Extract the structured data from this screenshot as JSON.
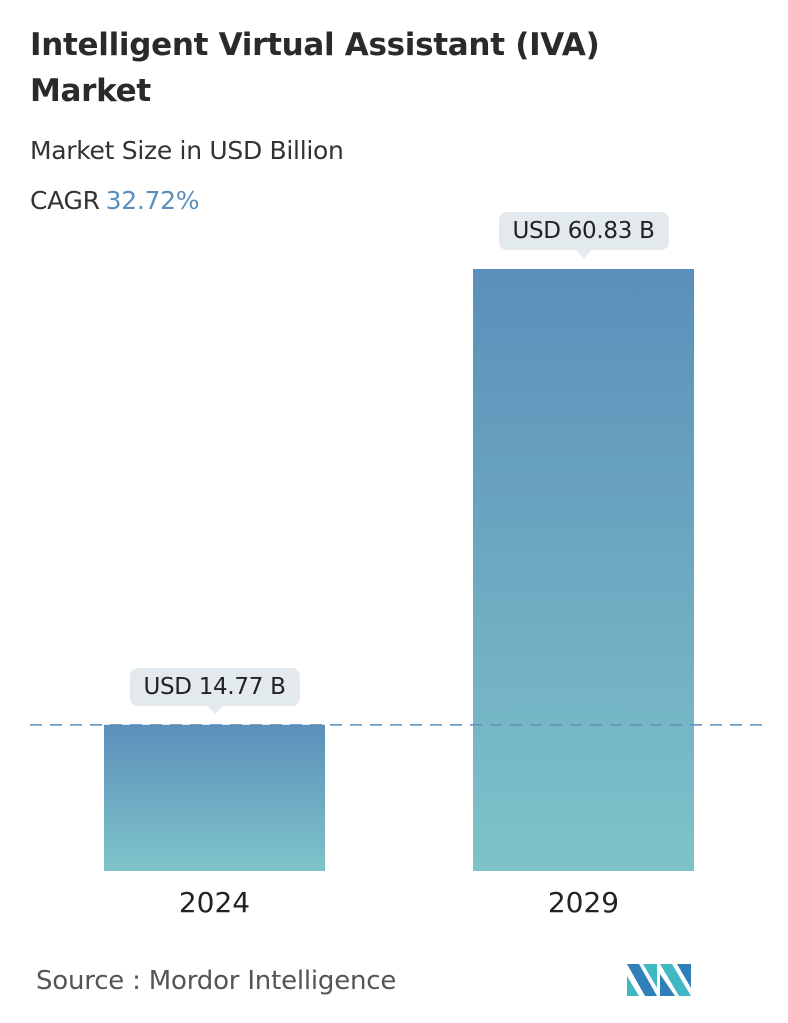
{
  "header": {
    "title": "Intelligent Virtual Assistant (IVA) Market",
    "subtitle": "Market Size in USD Billion",
    "cagr_label": "CAGR",
    "cagr_value": "32.72%"
  },
  "chart_data": {
    "type": "bar",
    "title": "Intelligent Virtual Assistant (IVA) Market",
    "ylabel": "Market Size in USD Billion",
    "categories": [
      "2024",
      "2029"
    ],
    "values": [
      14.77,
      60.83
    ],
    "data_labels": [
      "USD 14.77 B",
      "USD 60.83 B"
    ],
    "ylim": [
      0,
      60.83
    ],
    "grid": false,
    "reference_line": {
      "value": 14.77,
      "style": "dashed"
    },
    "colors": {
      "bar_top": "#5b8fba",
      "bar_bottom": "#7ec3c9",
      "line": "#5b8fba",
      "label_bg": "#e3eaee"
    }
  },
  "footer": {
    "source": "Source :  Mordor Intelligence",
    "logo_text": "MI"
  }
}
